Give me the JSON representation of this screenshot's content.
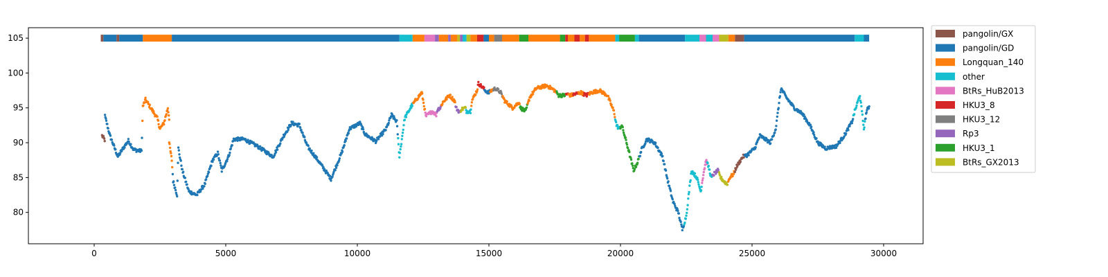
{
  "chart_data": {
    "type": "scatter",
    "title": "",
    "xlabel": "",
    "ylabel": "",
    "xlim": [
      -2500,
      31500
    ],
    "ylim": [
      75.5,
      106.5
    ],
    "x_ticks": [
      0,
      5000,
      10000,
      15000,
      20000,
      25000,
      30000
    ],
    "y_ticks": [
      80,
      85,
      90,
      95,
      100,
      105
    ],
    "grid": false,
    "legend_position": "outside-right",
    "colors": {
      "pangolin/GX": "#8c564b",
      "pangolin/GD": "#1f77b4",
      "Longquan_140": "#ff7f0e",
      "other": "#17becf",
      "BtRs_HuB2013": "#e377c2",
      "HKU3_8": "#d62728",
      "HKU3_12": "#7f7f7f",
      "Rp3": "#9467bd",
      "HKU3_1": "#2ca02c",
      "BtRs_GX2013": "#bcbd22"
    },
    "legend": [
      "pangolin/GX",
      "pangolin/GD",
      "Longquan_140",
      "other",
      "BtRs_HuB2013",
      "HKU3_8",
      "HKU3_12",
      "Rp3",
      "HKU3_1",
      "BtRs_GX2013"
    ],
    "top_bar_y": 105,
    "top_bar_segments": [
      [
        250,
        350,
        "pangolin/GX"
      ],
      [
        350,
        850,
        "pangolin/GD"
      ],
      [
        850,
        950,
        "pangolin/GX"
      ],
      [
        950,
        1850,
        "pangolin/GD"
      ],
      [
        1850,
        2950,
        "Longquan_140"
      ],
      [
        2950,
        11600,
        "pangolin/GD"
      ],
      [
        11600,
        12100,
        "other"
      ],
      [
        12100,
        12550,
        "Longquan_140"
      ],
      [
        12550,
        12950,
        "BtRs_HuB2013"
      ],
      [
        12950,
        13100,
        "Rp3"
      ],
      [
        13100,
        13450,
        "Longquan_140"
      ],
      [
        13450,
        13550,
        "Rp3"
      ],
      [
        13550,
        13800,
        "Longquan_140"
      ],
      [
        13800,
        13900,
        "BtRs_GX2013"
      ],
      [
        13900,
        14000,
        "Rp3"
      ],
      [
        14000,
        14150,
        "other"
      ],
      [
        14150,
        14300,
        "BtRs_GX2013"
      ],
      [
        14300,
        14550,
        "Longquan_140"
      ],
      [
        14550,
        14800,
        "HKU3_8"
      ],
      [
        14800,
        15000,
        "pangolin/GD"
      ],
      [
        15000,
        15200,
        "Longquan_140"
      ],
      [
        15200,
        15500,
        "HKU3_12"
      ],
      [
        15500,
        16150,
        "Longquan_140"
      ],
      [
        16150,
        16500,
        "HKU3_1"
      ],
      [
        16500,
        17700,
        "Longquan_140"
      ],
      [
        17700,
        17900,
        "HKU3_1"
      ],
      [
        17900,
        18000,
        "HKU3_8"
      ],
      [
        18000,
        18250,
        "Longquan_140"
      ],
      [
        18250,
        18450,
        "HKU3_8"
      ],
      [
        18450,
        18650,
        "Longquan_140"
      ],
      [
        18650,
        18800,
        "HKU3_8"
      ],
      [
        18800,
        19800,
        "Longquan_140"
      ],
      [
        19800,
        19950,
        "other"
      ],
      [
        19950,
        20550,
        "HKU3_1"
      ],
      [
        20550,
        20700,
        "other"
      ],
      [
        20700,
        22450,
        "pangolin/GD"
      ],
      [
        22450,
        23000,
        "other"
      ],
      [
        23000,
        23250,
        "BtRs_HuB2013"
      ],
      [
        23250,
        23500,
        "other"
      ],
      [
        23500,
        23750,
        "BtRs_HuB2013"
      ],
      [
        23750,
        24100,
        "BtRs_GX2013"
      ],
      [
        24100,
        24350,
        "Longquan_140"
      ],
      [
        24350,
        24700,
        "pangolin/GX"
      ],
      [
        24700,
        28900,
        "pangolin/GD"
      ],
      [
        28900,
        29250,
        "other"
      ],
      [
        29250,
        29450,
        "pangolin/GD"
      ]
    ],
    "series_knots": [
      [
        300,
        91.0,
        "pangolin/GX"
      ],
      [
        400,
        90.4,
        "pangolin/GX"
      ],
      [
        410,
        93.8,
        "pangolin/GD"
      ],
      [
        600,
        91.0,
        "pangolin/GD"
      ],
      [
        900,
        88.0,
        "pangolin/GD"
      ],
      [
        1100,
        89.2,
        "pangolin/GD"
      ],
      [
        1300,
        90.3,
        "pangolin/GD"
      ],
      [
        1500,
        89.0,
        "pangolin/GD"
      ],
      [
        1800,
        88.8,
        "pangolin/GD"
      ],
      [
        1850,
        95.2,
        "Longquan_140"
      ],
      [
        1950,
        96.2,
        "Longquan_140"
      ],
      [
        2150,
        95.0,
        "Longquan_140"
      ],
      [
        2400,
        93.5,
        "Longquan_140"
      ],
      [
        2500,
        92.0,
        "Longquan_140"
      ],
      [
        2650,
        92.8,
        "Longquan_140"
      ],
      [
        2800,
        95.0,
        "Longquan_140"
      ],
      [
        2850,
        93.5,
        "Longquan_140"
      ],
      [
        2850,
        90.0,
        "Longquan_140"
      ],
      [
        2950,
        87.5,
        "Longquan_140"
      ],
      [
        3000,
        84.5,
        "pangolin/GD"
      ],
      [
        3150,
        82.5,
        "pangolin/GD"
      ],
      [
        3200,
        89.2,
        "pangolin/GD"
      ],
      [
        3350,
        86.0,
        "pangolin/GD"
      ],
      [
        3600,
        83.0,
        "pangolin/GD"
      ],
      [
        3900,
        82.5,
        "pangolin/GD"
      ],
      [
        4200,
        84.0,
        "pangolin/GD"
      ],
      [
        4500,
        87.5,
        "pangolin/GD"
      ],
      [
        4700,
        88.5,
        "pangolin/GD"
      ],
      [
        4850,
        86.0,
        "pangolin/GD"
      ],
      [
        5100,
        88.0,
        "pangolin/GD"
      ],
      [
        5300,
        90.5,
        "pangolin/GD"
      ],
      [
        5700,
        90.5,
        "pangolin/GD"
      ],
      [
        6200,
        89.5,
        "pangolin/GD"
      ],
      [
        6800,
        88.0,
        "pangolin/GD"
      ],
      [
        7200,
        91.0,
        "pangolin/GD"
      ],
      [
        7500,
        92.8,
        "pangolin/GD"
      ],
      [
        7800,
        92.5,
        "pangolin/GD"
      ],
      [
        8100,
        89.5,
        "pangolin/GD"
      ],
      [
        8500,
        87.5,
        "pangolin/GD"
      ],
      [
        9000,
        84.8,
        "pangolin/GD"
      ],
      [
        9400,
        88.5,
        "pangolin/GD"
      ],
      [
        9700,
        92.0,
        "pangolin/GD"
      ],
      [
        10100,
        92.8,
        "pangolin/GD"
      ],
      [
        10300,
        91.2,
        "pangolin/GD"
      ],
      [
        10700,
        90.2,
        "pangolin/GD"
      ],
      [
        11100,
        92.0,
        "pangolin/GD"
      ],
      [
        11300,
        94.0,
        "pangolin/GD"
      ],
      [
        11500,
        93.0,
        "pangolin/GD"
      ],
      [
        11600,
        88.0,
        "other"
      ],
      [
        11800,
        93.5,
        "other"
      ],
      [
        12050,
        95.2,
        "other"
      ],
      [
        12200,
        96.0,
        "Longquan_140"
      ],
      [
        12450,
        97.2,
        "Longquan_140"
      ],
      [
        12550,
        95.0,
        "Longquan_140"
      ],
      [
        12600,
        93.8,
        "BtRs_HuB2013"
      ],
      [
        12850,
        94.5,
        "BtRs_HuB2013"
      ],
      [
        13000,
        94.0,
        "BtRs_HuB2013"
      ],
      [
        13050,
        94.8,
        "Rp3"
      ],
      [
        13150,
        95.0,
        "Rp3"
      ],
      [
        13250,
        95.8,
        "Longquan_140"
      ],
      [
        13500,
        96.8,
        "Longquan_140"
      ],
      [
        13700,
        96.0,
        "Longquan_140"
      ],
      [
        13750,
        95.0,
        "Rp3"
      ],
      [
        13900,
        94.3,
        "Rp3"
      ],
      [
        13950,
        94.8,
        "BtRs_GX2013"
      ],
      [
        14100,
        95.0,
        "BtRs_GX2013"
      ],
      [
        14150,
        94.5,
        "other"
      ],
      [
        14300,
        94.5,
        "other"
      ],
      [
        14350,
        96.0,
        "Longquan_140"
      ],
      [
        14550,
        97.5,
        "Longquan_140"
      ],
      [
        14600,
        98.5,
        "HKU3_8"
      ],
      [
        14800,
        97.8,
        "HKU3_8"
      ],
      [
        14850,
        97.5,
        "pangolin/GD"
      ],
      [
        15000,
        97.2,
        "pangolin/GD"
      ],
      [
        15100,
        97.5,
        "Longquan_140"
      ],
      [
        15250,
        97.8,
        "HKU3_12"
      ],
      [
        15450,
        97.2,
        "HKU3_12"
      ],
      [
        15600,
        96.0,
        "Longquan_140"
      ],
      [
        15900,
        95.0,
        "Longquan_140"
      ],
      [
        16150,
        95.8,
        "Longquan_140"
      ],
      [
        16200,
        95.0,
        "HKU3_1"
      ],
      [
        16400,
        94.5,
        "HKU3_1"
      ],
      [
        16550,
        96.5,
        "Longquan_140"
      ],
      [
        16800,
        97.8,
        "Longquan_140"
      ],
      [
        17200,
        98.2,
        "Longquan_140"
      ],
      [
        17500,
        97.5,
        "Longquan_140"
      ],
      [
        17650,
        96.8,
        "HKU3_1"
      ],
      [
        17900,
        96.8,
        "HKU3_1"
      ],
      [
        17950,
        97.0,
        "HKU3_8"
      ],
      [
        18100,
        96.8,
        "Longquan_140"
      ],
      [
        18300,
        97.0,
        "HKU3_8"
      ],
      [
        18500,
        97.2,
        "Longquan_140"
      ],
      [
        18700,
        96.8,
        "HKU3_8"
      ],
      [
        18900,
        97.2,
        "Longquan_140"
      ],
      [
        19200,
        97.5,
        "Longquan_140"
      ],
      [
        19500,
        96.8,
        "Longquan_140"
      ],
      [
        19750,
        94.5,
        "Longquan_140"
      ],
      [
        19850,
        92.5,
        "other"
      ],
      [
        19950,
        92.0,
        "other"
      ],
      [
        20050,
        92.5,
        "HKU3_1"
      ],
      [
        20300,
        89.0,
        "HKU3_1"
      ],
      [
        20500,
        86.0,
        "HKU3_1"
      ],
      [
        20650,
        87.2,
        "HKU3_1"
      ],
      [
        20800,
        89.0,
        "pangolin/GD"
      ],
      [
        21000,
        90.5,
        "pangolin/GD"
      ],
      [
        21300,
        90.0,
        "pangolin/GD"
      ],
      [
        21600,
        88.0,
        "pangolin/GD"
      ],
      [
        21800,
        84.5,
        "pangolin/GD"
      ],
      [
        22000,
        81.5,
        "pangolin/GD"
      ],
      [
        22200,
        80.0,
        "pangolin/GD"
      ],
      [
        22350,
        77.5,
        "pangolin/GD"
      ],
      [
        22500,
        79.5,
        "other"
      ],
      [
        22700,
        86.0,
        "other"
      ],
      [
        22900,
        85.0,
        "other"
      ],
      [
        23050,
        83.0,
        "other"
      ],
      [
        23150,
        85.5,
        "BtRs_HuB2013"
      ],
      [
        23250,
        87.5,
        "BtRs_HuB2013"
      ],
      [
        23350,
        86.5,
        "other"
      ],
      [
        23450,
        85.0,
        "other"
      ],
      [
        23550,
        85.5,
        "Rp3"
      ],
      [
        23700,
        86.0,
        "Rp3"
      ],
      [
        23800,
        85.0,
        "BtRs_GX2013"
      ],
      [
        24050,
        84.0,
        "BtRs_GX2013"
      ],
      [
        24150,
        85.0,
        "Longquan_140"
      ],
      [
        24300,
        85.5,
        "Longquan_140"
      ],
      [
        24400,
        86.5,
        "pangolin/GX"
      ],
      [
        24650,
        88.0,
        "pangolin/GX"
      ],
      [
        24800,
        88.2,
        "pangolin/GD"
      ],
      [
        25100,
        89.2,
        "pangolin/GD"
      ],
      [
        25300,
        91.0,
        "pangolin/GD"
      ],
      [
        25700,
        90.0,
        "pangolin/GD"
      ],
      [
        25900,
        92.0,
        "pangolin/GD"
      ],
      [
        26100,
        97.8,
        "pangolin/GD"
      ],
      [
        26300,
        96.5,
        "pangolin/GD"
      ],
      [
        26600,
        95.0,
        "pangolin/GD"
      ],
      [
        26900,
        94.2,
        "pangolin/GD"
      ],
      [
        27200,
        92.5,
        "pangolin/GD"
      ],
      [
        27500,
        90.0,
        "pangolin/GD"
      ],
      [
        27800,
        89.2,
        "pangolin/GD"
      ],
      [
        28200,
        89.5,
        "pangolin/GD"
      ],
      [
        28500,
        91.0,
        "pangolin/GD"
      ],
      [
        28800,
        93.0,
        "pangolin/GD"
      ],
      [
        28900,
        94.5,
        "other"
      ],
      [
        29100,
        96.8,
        "other"
      ],
      [
        29250,
        92.0,
        "other"
      ],
      [
        29350,
        94.5,
        "pangolin/GD"
      ],
      [
        29450,
        95.2,
        "pangolin/GD"
      ]
    ]
  }
}
